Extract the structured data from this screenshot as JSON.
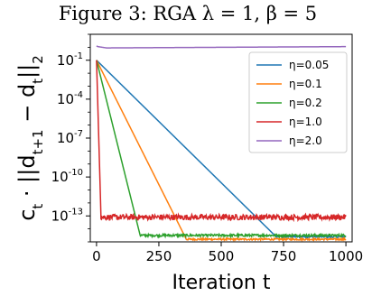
{
  "chart_data": {
    "type": "line",
    "title": "Figure 3: RGA λ = 1, β = 5",
    "xlabel": "Iteration t",
    "ylabel": "c_t · ||d_{t+1} − d_t||_2",
    "yscale": "log",
    "xlim": [
      -25,
      1025
    ],
    "ylim_exponent": [
      -15,
      1
    ],
    "xticks": [
      0,
      250,
      500,
      750,
      1000
    ],
    "yticks": [
      {
        "base": "10",
        "exp": "-1",
        "value": -1
      },
      {
        "base": "10",
        "exp": "-4",
        "value": -4
      },
      {
        "base": "10",
        "exp": "-7",
        "value": -7
      },
      {
        "base": "10",
        "exp": "-10",
        "value": -10
      },
      {
        "base": "10",
        "exp": "-13",
        "value": -13
      }
    ],
    "grid": false,
    "legend_position": "upper-right",
    "series": [
      {
        "name": "η=0.05",
        "color": "#1f77b4",
        "x": [
          0,
          720,
          1000
        ],
        "log10_y": [
          -1.0,
          -14.6,
          -14.6
        ],
        "noise": 0.07
      },
      {
        "name": "η=0.1",
        "color": "#ff7f0e",
        "x": [
          0,
          360,
          1000
        ],
        "log10_y": [
          -1.0,
          -14.8,
          -14.8
        ],
        "noise": 0.07
      },
      {
        "name": "η=0.2",
        "color": "#2ca02c",
        "x": [
          0,
          175,
          1000
        ],
        "log10_y": [
          -1.0,
          -14.5,
          -14.5
        ],
        "noise": 0.09
      },
      {
        "name": "η=1.0",
        "color": "#d62728",
        "x": [
          0,
          18,
          1000
        ],
        "log10_y": [
          -1.0,
          -13.1,
          -13.1
        ],
        "noise": 0.22
      },
      {
        "name": "η=2.0",
        "color": "#9467bd",
        "x": [
          0,
          5,
          40,
          1000
        ],
        "log10_y": [
          0.1,
          0.05,
          -0.05,
          0.05
        ],
        "noise": 0.0
      }
    ]
  }
}
